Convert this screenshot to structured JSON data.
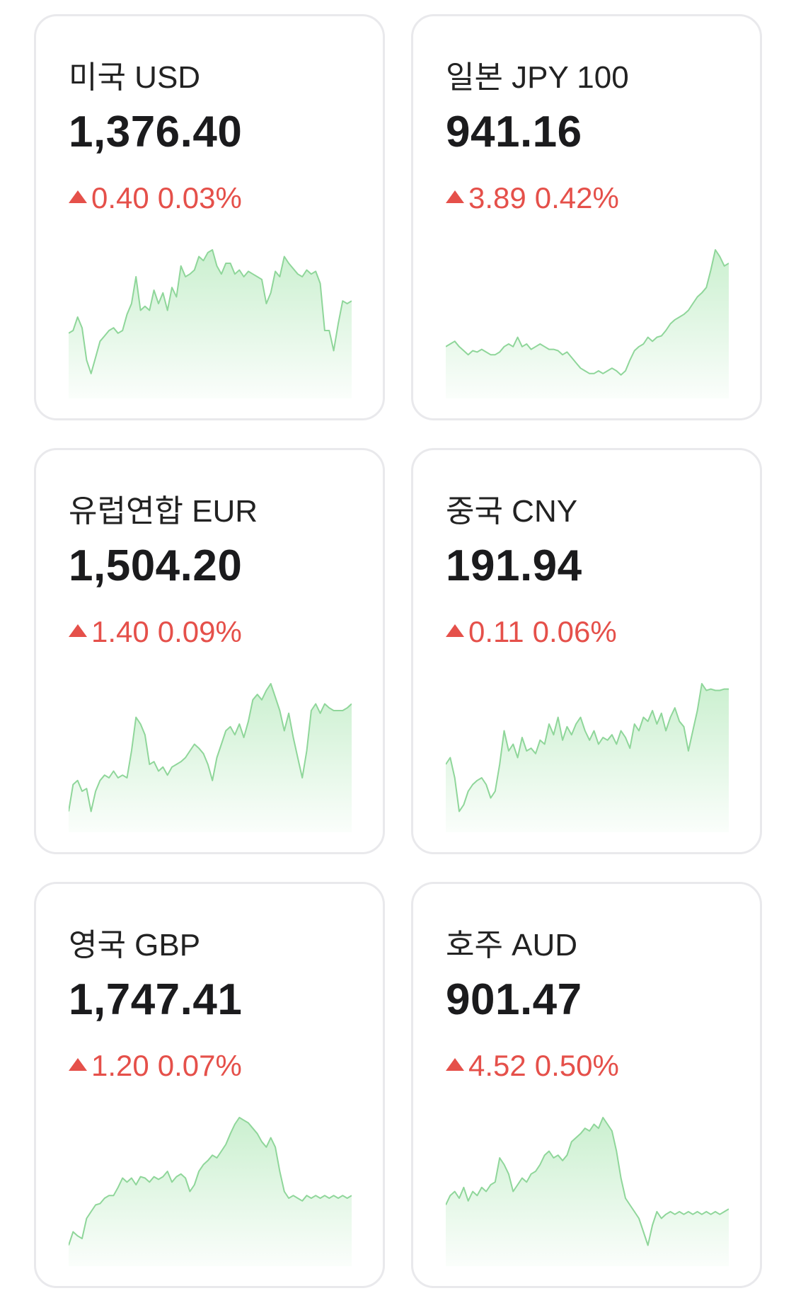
{
  "cards": [
    {
      "name": "미국 USD",
      "price": "1,376.40",
      "change": "0.40",
      "change_pct": "0.03%",
      "direction": "up",
      "sparkline": [
        0.38,
        0.4,
        0.5,
        0.42,
        0.18,
        0.08,
        0.2,
        0.32,
        0.36,
        0.4,
        0.42,
        0.38,
        0.4,
        0.52,
        0.6,
        0.8,
        0.55,
        0.58,
        0.55,
        0.7,
        0.6,
        0.68,
        0.55,
        0.72,
        0.65,
        0.88,
        0.8,
        0.82,
        0.85,
        0.95,
        0.92,
        0.98,
        1.0,
        0.88,
        0.82,
        0.9,
        0.9,
        0.82,
        0.85,
        0.8,
        0.84,
        0.82,
        0.8,
        0.78,
        0.6,
        0.68,
        0.84,
        0.8,
        0.95,
        0.9,
        0.86,
        0.82,
        0.8,
        0.85,
        0.82,
        0.84,
        0.75,
        0.4,
        0.4,
        0.25,
        0.45,
        0.62,
        0.6,
        0.62
      ]
    },
    {
      "name": "일본 JPY 100",
      "price": "941.16",
      "change": "3.89",
      "change_pct": "0.42%",
      "direction": "up",
      "sparkline": [
        0.28,
        0.3,
        0.32,
        0.28,
        0.25,
        0.22,
        0.25,
        0.24,
        0.26,
        0.24,
        0.22,
        0.22,
        0.24,
        0.28,
        0.3,
        0.28,
        0.35,
        0.28,
        0.3,
        0.26,
        0.28,
        0.3,
        0.28,
        0.26,
        0.26,
        0.25,
        0.22,
        0.24,
        0.2,
        0.16,
        0.12,
        0.1,
        0.08,
        0.08,
        0.1,
        0.08,
        0.1,
        0.12,
        0.1,
        0.07,
        0.1,
        0.18,
        0.25,
        0.28,
        0.3,
        0.35,
        0.32,
        0.35,
        0.36,
        0.4,
        0.45,
        0.48,
        0.5,
        0.52,
        0.55,
        0.6,
        0.65,
        0.68,
        0.72,
        0.85,
        1.0,
        0.95,
        0.88,
        0.9
      ]
    },
    {
      "name": "유럽연합 EUR",
      "price": "1,504.20",
      "change": "1.40",
      "change_pct": "0.09%",
      "direction": "up",
      "sparkline": [
        0.05,
        0.25,
        0.28,
        0.2,
        0.22,
        0.05,
        0.2,
        0.28,
        0.32,
        0.3,
        0.35,
        0.3,
        0.32,
        0.3,
        0.5,
        0.75,
        0.7,
        0.62,
        0.4,
        0.42,
        0.35,
        0.38,
        0.32,
        0.38,
        0.4,
        0.42,
        0.45,
        0.5,
        0.55,
        0.52,
        0.48,
        0.4,
        0.28,
        0.45,
        0.55,
        0.65,
        0.68,
        0.62,
        0.7,
        0.6,
        0.72,
        0.88,
        0.92,
        0.88,
        0.95,
        1.0,
        0.9,
        0.8,
        0.65,
        0.78,
        0.6,
        0.45,
        0.3,
        0.5,
        0.8,
        0.85,
        0.78,
        0.85,
        0.82,
        0.8,
        0.8,
        0.8,
        0.82,
        0.85
      ]
    },
    {
      "name": "중국 CNY",
      "price": "191.94",
      "change": "0.11",
      "change_pct": "0.06%",
      "direction": "up",
      "sparkline": [
        0.4,
        0.45,
        0.3,
        0.05,
        0.1,
        0.2,
        0.25,
        0.28,
        0.3,
        0.25,
        0.15,
        0.2,
        0.4,
        0.65,
        0.5,
        0.55,
        0.45,
        0.6,
        0.5,
        0.52,
        0.48,
        0.58,
        0.55,
        0.7,
        0.62,
        0.75,
        0.58,
        0.68,
        0.62,
        0.7,
        0.75,
        0.65,
        0.58,
        0.65,
        0.55,
        0.6,
        0.58,
        0.62,
        0.55,
        0.65,
        0.6,
        0.52,
        0.7,
        0.65,
        0.75,
        0.72,
        0.8,
        0.7,
        0.78,
        0.65,
        0.75,
        0.82,
        0.72,
        0.68,
        0.5,
        0.65,
        0.8,
        1.0,
        0.95,
        0.96,
        0.95,
        0.95,
        0.96,
        0.96
      ]
    },
    {
      "name": "영국 GBP",
      "price": "1,747.41",
      "change": "1.20",
      "change_pct": "0.07%",
      "direction": "up",
      "sparkline": [
        0.05,
        0.15,
        0.12,
        0.1,
        0.25,
        0.3,
        0.35,
        0.36,
        0.4,
        0.42,
        0.42,
        0.48,
        0.55,
        0.52,
        0.55,
        0.5,
        0.56,
        0.55,
        0.52,
        0.56,
        0.54,
        0.56,
        0.6,
        0.52,
        0.56,
        0.58,
        0.55,
        0.45,
        0.5,
        0.6,
        0.65,
        0.68,
        0.72,
        0.7,
        0.75,
        0.8,
        0.88,
        0.95,
        1.0,
        0.98,
        0.96,
        0.92,
        0.88,
        0.82,
        0.78,
        0.85,
        0.78,
        0.6,
        0.45,
        0.4,
        0.42,
        0.4,
        0.38,
        0.42,
        0.4,
        0.42,
        0.4,
        0.42,
        0.4,
        0.42,
        0.4,
        0.42,
        0.4,
        0.42
      ]
    },
    {
      "name": "호주 AUD",
      "price": "901.47",
      "change": "4.52",
      "change_pct": "0.50%",
      "direction": "up",
      "sparkline": [
        0.35,
        0.42,
        0.45,
        0.4,
        0.48,
        0.38,
        0.45,
        0.42,
        0.48,
        0.45,
        0.5,
        0.52,
        0.7,
        0.65,
        0.58,
        0.45,
        0.5,
        0.55,
        0.52,
        0.58,
        0.6,
        0.65,
        0.72,
        0.75,
        0.7,
        0.72,
        0.68,
        0.72,
        0.82,
        0.85,
        0.88,
        0.92,
        0.9,
        0.95,
        0.92,
        1.0,
        0.95,
        0.9,
        0.75,
        0.55,
        0.4,
        0.35,
        0.3,
        0.25,
        0.15,
        0.05,
        0.2,
        0.3,
        0.25,
        0.28,
        0.3,
        0.28,
        0.3,
        0.28,
        0.3,
        0.28,
        0.3,
        0.28,
        0.3,
        0.28,
        0.3,
        0.28,
        0.3,
        0.32
      ]
    }
  ],
  "colors": {
    "up": "#e5504a",
    "spark_line": "#8fd69a",
    "spark_fill": "#c8efcd"
  }
}
